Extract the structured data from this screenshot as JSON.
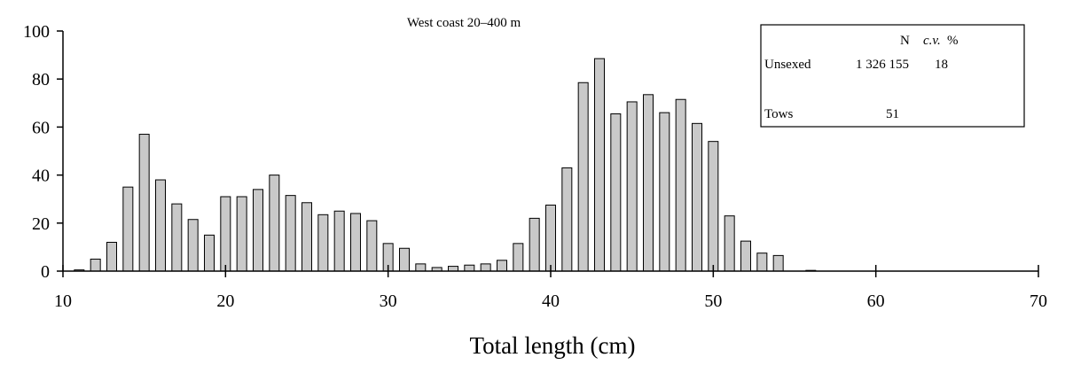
{
  "chart_data": {
    "type": "bar",
    "title": "West coast 20–400 m",
    "xlabel": "Total length (cm)",
    "ylabel": "",
    "xlim": [
      10,
      70
    ],
    "ylim": [
      0,
      100
    ],
    "x_ticks": [
      "10",
      "20",
      "30",
      "40",
      "50",
      "60",
      "70"
    ],
    "y_ticks": [
      "0",
      "20",
      "40",
      "60",
      "80",
      "100"
    ],
    "grid": false,
    "x": [
      11,
      12,
      13,
      14,
      15,
      16,
      17,
      18,
      19,
      20,
      21,
      22,
      23,
      24,
      25,
      26,
      27,
      28,
      29,
      30,
      31,
      32,
      33,
      34,
      35,
      36,
      37,
      38,
      39,
      40,
      41,
      42,
      43,
      44,
      45,
      46,
      47,
      48,
      49,
      50,
      51,
      52,
      53,
      54,
      55,
      56
    ],
    "values": [
      0.5,
      5,
      12,
      35,
      57,
      38,
      28,
      21.5,
      15,
      31,
      31,
      34,
      40,
      31.5,
      28.5,
      23.5,
      25,
      24,
      21,
      11.5,
      9.5,
      3,
      1.5,
      2,
      2.5,
      3,
      4.5,
      11.5,
      22,
      27.5,
      43,
      78.5,
      88.5,
      65.5,
      70.5,
      73.5,
      66,
      71.5,
      61.5,
      54,
      23,
      12.5,
      7.5,
      6.5,
      0,
      0.3
    ]
  },
  "legend_box": {
    "header_n": "N",
    "header_cv": "c.v.",
    "header_pct": "%",
    "row1_label": "Unsexed",
    "row1_n": "1 326 155",
    "row1_cv": "18",
    "row2_label": "Tows",
    "row2_n": "51"
  }
}
